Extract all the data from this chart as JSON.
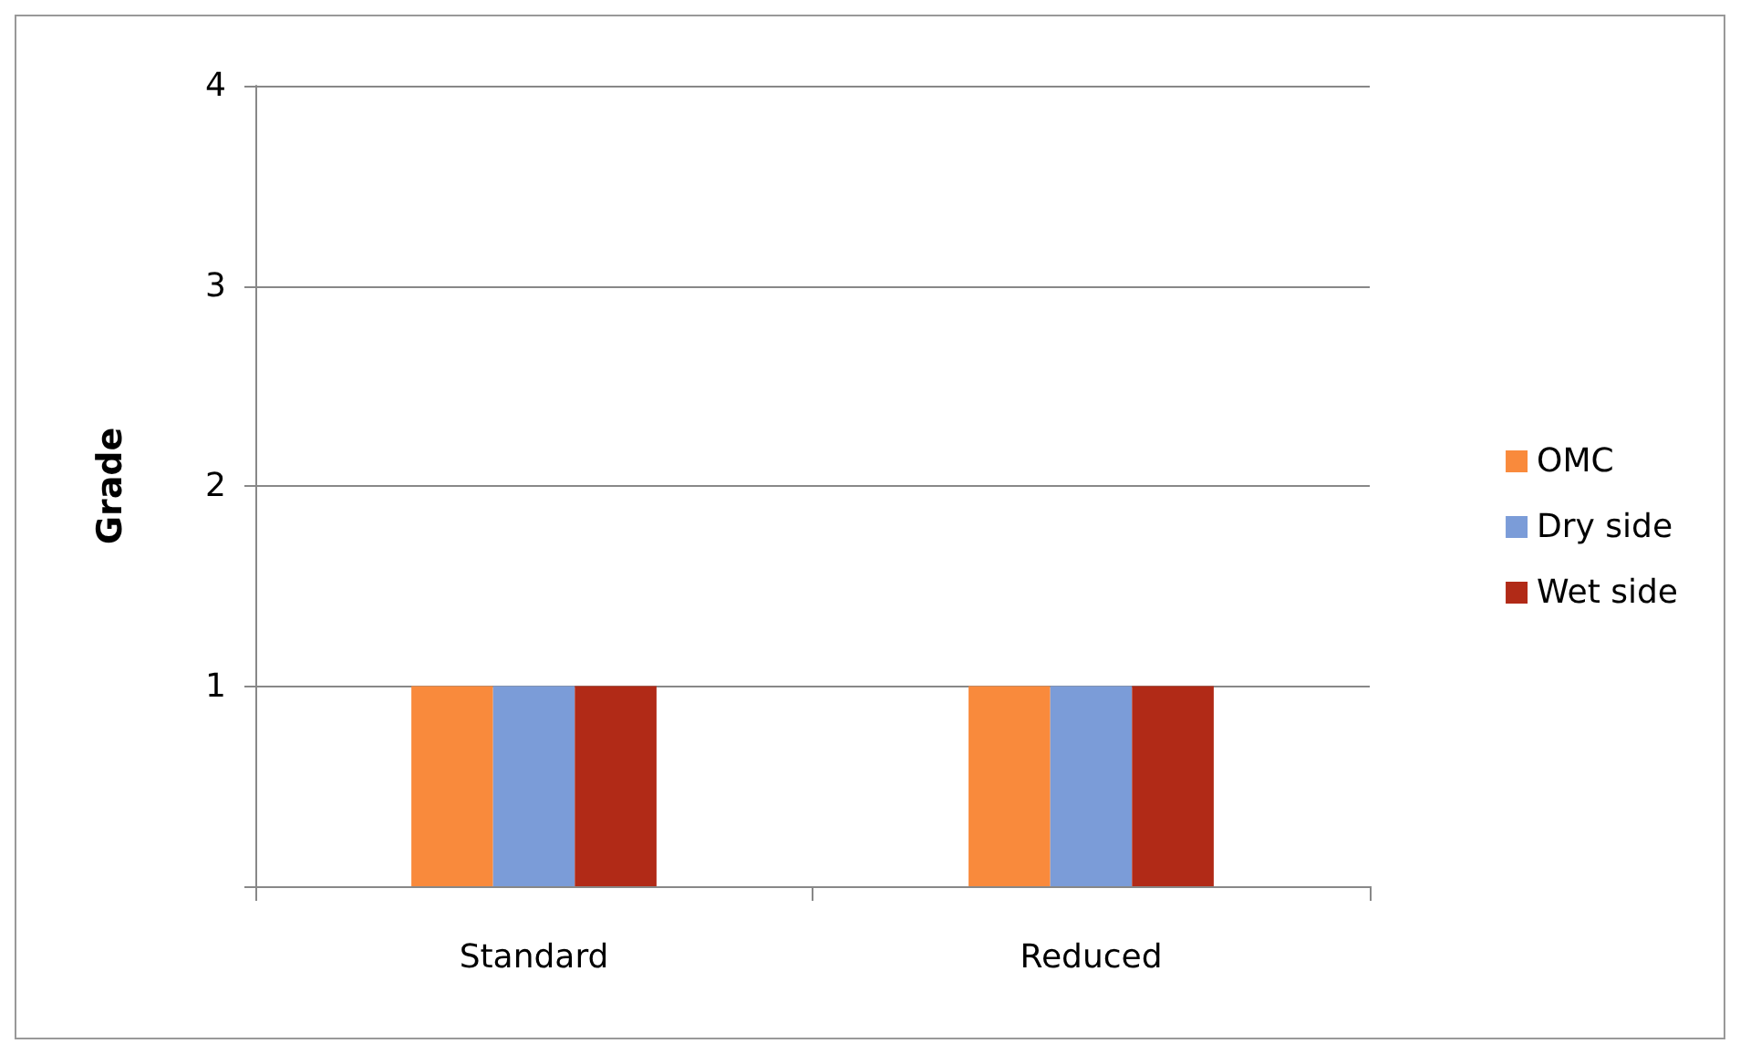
{
  "chart_data": {
    "type": "bar",
    "ylabel": "Grade",
    "categories": [
      "Standard",
      "Reduced"
    ],
    "series": [
      {
        "name": "OMC",
        "color": "#f98a3c",
        "values": [
          1,
          1
        ]
      },
      {
        "name": "Dry side",
        "color": "#7b9cd8",
        "values": [
          1,
          1
        ]
      },
      {
        "name": "Wet side",
        "color": "#b12a17",
        "values": [
          1,
          1
        ]
      }
    ],
    "ylim": [
      0,
      4
    ],
    "yticks": [
      {
        "value": 0,
        "label": null
      },
      1,
      2,
      3,
      4
    ],
    "grid": "y",
    "legend": "right"
  }
}
